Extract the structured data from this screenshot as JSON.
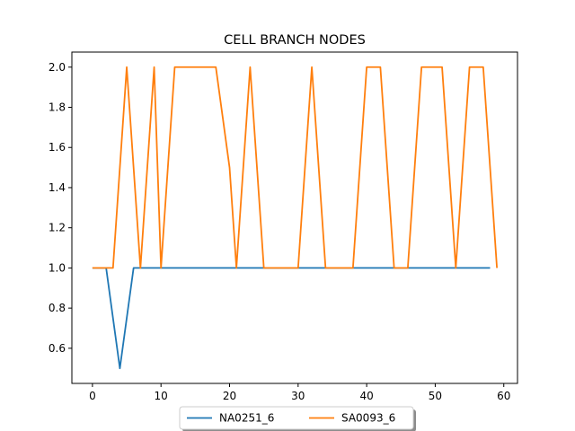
{
  "chart_data": {
    "type": "line",
    "title": "CELL BRANCH NODES",
    "xlabel": "",
    "ylabel": "",
    "xlim": [
      -3,
      62
    ],
    "ylim": [
      0.425,
      2.075
    ],
    "xticks": [
      0,
      10,
      20,
      30,
      40,
      50,
      60
    ],
    "yticks": [
      0.6,
      0.8,
      1.0,
      1.2,
      1.4,
      1.6,
      1.8,
      2.0
    ],
    "grid": false,
    "legend": {
      "placement": "bottom-center-outside",
      "columns": 2
    },
    "series": [
      {
        "name": "NA0251_6",
        "color": "#1f77b4",
        "x": [
          0,
          1,
          2,
          3,
          4,
          5,
          6,
          7,
          8,
          9,
          10,
          11,
          12,
          13,
          14,
          15,
          16,
          17,
          18,
          19,
          20,
          21,
          22,
          23,
          24,
          25,
          26,
          27,
          28,
          29,
          30,
          31,
          32,
          33,
          34,
          35,
          36,
          37,
          38,
          39,
          40,
          41,
          42,
          43,
          44,
          45,
          46,
          47,
          48,
          49,
          50,
          51,
          52,
          53,
          54,
          55,
          56,
          57,
          58
        ],
        "values": [
          1,
          1,
          1,
          0.75,
          0.5,
          0.75,
          1,
          1,
          1,
          1,
          1,
          1,
          1,
          1,
          1,
          1,
          1,
          1,
          1,
          1,
          1,
          1,
          1,
          1,
          1,
          1,
          1,
          1,
          1,
          1,
          1,
          1,
          1,
          1,
          1,
          1,
          1,
          1,
          1,
          1,
          1,
          1,
          1,
          1,
          1,
          1,
          1,
          1,
          1,
          1,
          1,
          1,
          1,
          1,
          1,
          1,
          1,
          1,
          1
        ]
      },
      {
        "name": "SA0093_6",
        "color": "#ff7f0e",
        "x": [
          0,
          1,
          2,
          3,
          4,
          5,
          6,
          7,
          8,
          9,
          10,
          11,
          12,
          13,
          14,
          15,
          16,
          17,
          18,
          19,
          20,
          21,
          22,
          23,
          24,
          25,
          26,
          27,
          28,
          29,
          30,
          31,
          32,
          33,
          34,
          35,
          36,
          37,
          38,
          39,
          40,
          41,
          42,
          43,
          44,
          45,
          46,
          47,
          48,
          49,
          50,
          51,
          52,
          53,
          54,
          55,
          56,
          57,
          58,
          59
        ],
        "values": [
          1,
          1,
          1,
          1,
          1.5,
          2,
          1.5,
          1,
          1.5,
          2,
          1,
          1.5,
          2,
          2,
          2,
          2,
          2,
          2,
          2,
          1.75,
          1.5,
          1,
          1.5,
          2,
          1.5,
          1,
          1,
          1,
          1,
          1,
          1,
          1.5,
          2,
          1.5,
          1,
          1,
          1,
          1,
          1,
          1.5,
          2,
          2,
          2,
          1.5,
          1,
          1,
          1,
          1.5,
          2,
          2,
          2,
          2,
          1.5,
          1,
          1.5,
          2,
          2,
          2,
          1.5,
          1
        ]
      }
    ]
  }
}
